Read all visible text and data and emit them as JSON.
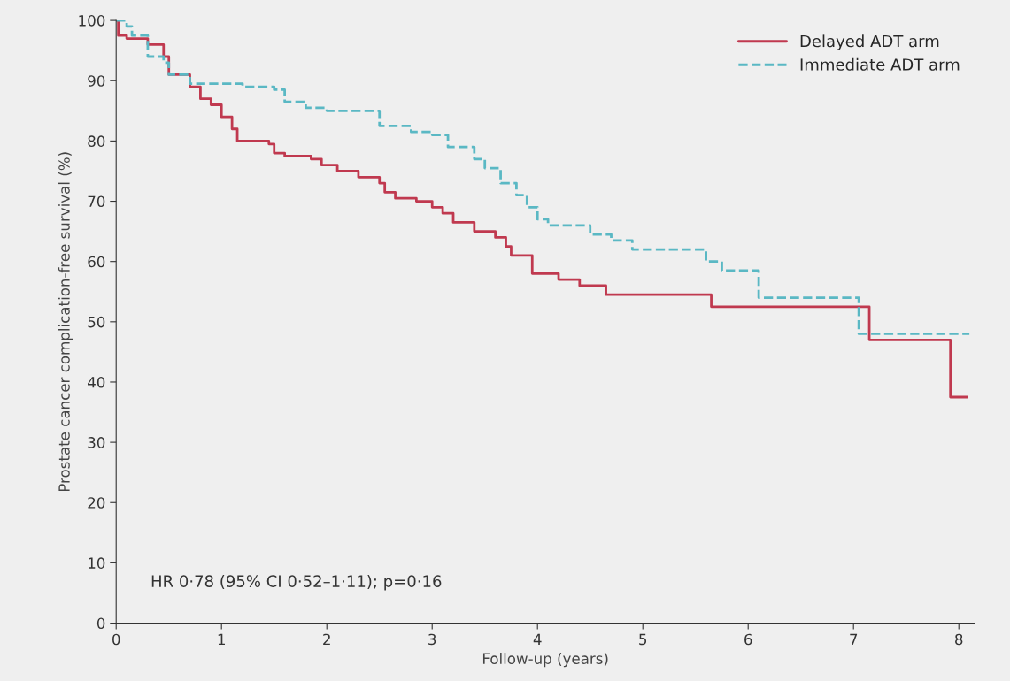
{
  "chart_data": {
    "type": "step",
    "xlabel": "Follow-up (years)",
    "ylabel": "Prostate cancer complication-free survival (%)",
    "xlim": [
      0,
      8.15
    ],
    "ylim": [
      0,
      100
    ],
    "xticks": [
      0,
      1,
      2,
      3,
      4,
      5,
      6,
      7,
      8
    ],
    "yticks": [
      0,
      10,
      20,
      30,
      40,
      50,
      60,
      70,
      80,
      90,
      100
    ],
    "grid": false,
    "legend": "top right",
    "annotations": [
      {
        "text": "HR 0·78 (95% CI 0·52–1·11); p=0·16"
      }
    ],
    "series": [
      {
        "name": "Delayed ADT arm",
        "color": "#c0394f",
        "line_style": "solid",
        "x": [
          0,
          0.02,
          0.1,
          0.3,
          0.45,
          0.5,
          0.7,
          0.8,
          0.9,
          1.0,
          1.1,
          1.15,
          1.35,
          1.45,
          1.5,
          1.6,
          1.85,
          1.95,
          2.1,
          2.3,
          2.5,
          2.55,
          2.65,
          2.85,
          3.0,
          3.1,
          3.2,
          3.4,
          3.6,
          3.7,
          3.75,
          3.95,
          4.2,
          4.4,
          4.65,
          5.65,
          7.15,
          7.92,
          8.08
        ],
        "values": [
          100,
          97.5,
          97,
          96,
          94,
          91,
          89,
          87,
          86,
          84,
          82,
          80,
          80,
          79.5,
          78,
          77.5,
          77,
          76,
          75,
          74,
          73,
          71.5,
          70.5,
          70,
          69,
          68,
          66.5,
          65,
          64,
          62.5,
          61,
          58,
          57,
          56,
          54.5,
          52.5,
          47,
          37.5,
          37.5
        ]
      },
      {
        "name": "Immediate ADT arm",
        "color": "#5ab8c4",
        "line_style": "dashed",
        "x": [
          0,
          0.1,
          0.15,
          0.3,
          0.45,
          0.5,
          0.7,
          1.2,
          1.5,
          1.6,
          1.8,
          2.0,
          2.5,
          2.8,
          3.0,
          3.15,
          3.4,
          3.5,
          3.65,
          3.8,
          3.9,
          4.0,
          4.1,
          4.5,
          4.7,
          4.9,
          5.6,
          5.75,
          6.1,
          7.05,
          8.1
        ],
        "values": [
          100,
          99,
          97.5,
          94,
          93,
          91,
          89.5,
          89,
          88.5,
          86.5,
          85.5,
          85,
          82.5,
          81.5,
          81,
          79,
          77,
          75.5,
          73,
          71,
          69,
          67,
          66,
          64.5,
          63.5,
          62,
          60,
          58.5,
          54,
          48,
          48
        ]
      }
    ]
  }
}
